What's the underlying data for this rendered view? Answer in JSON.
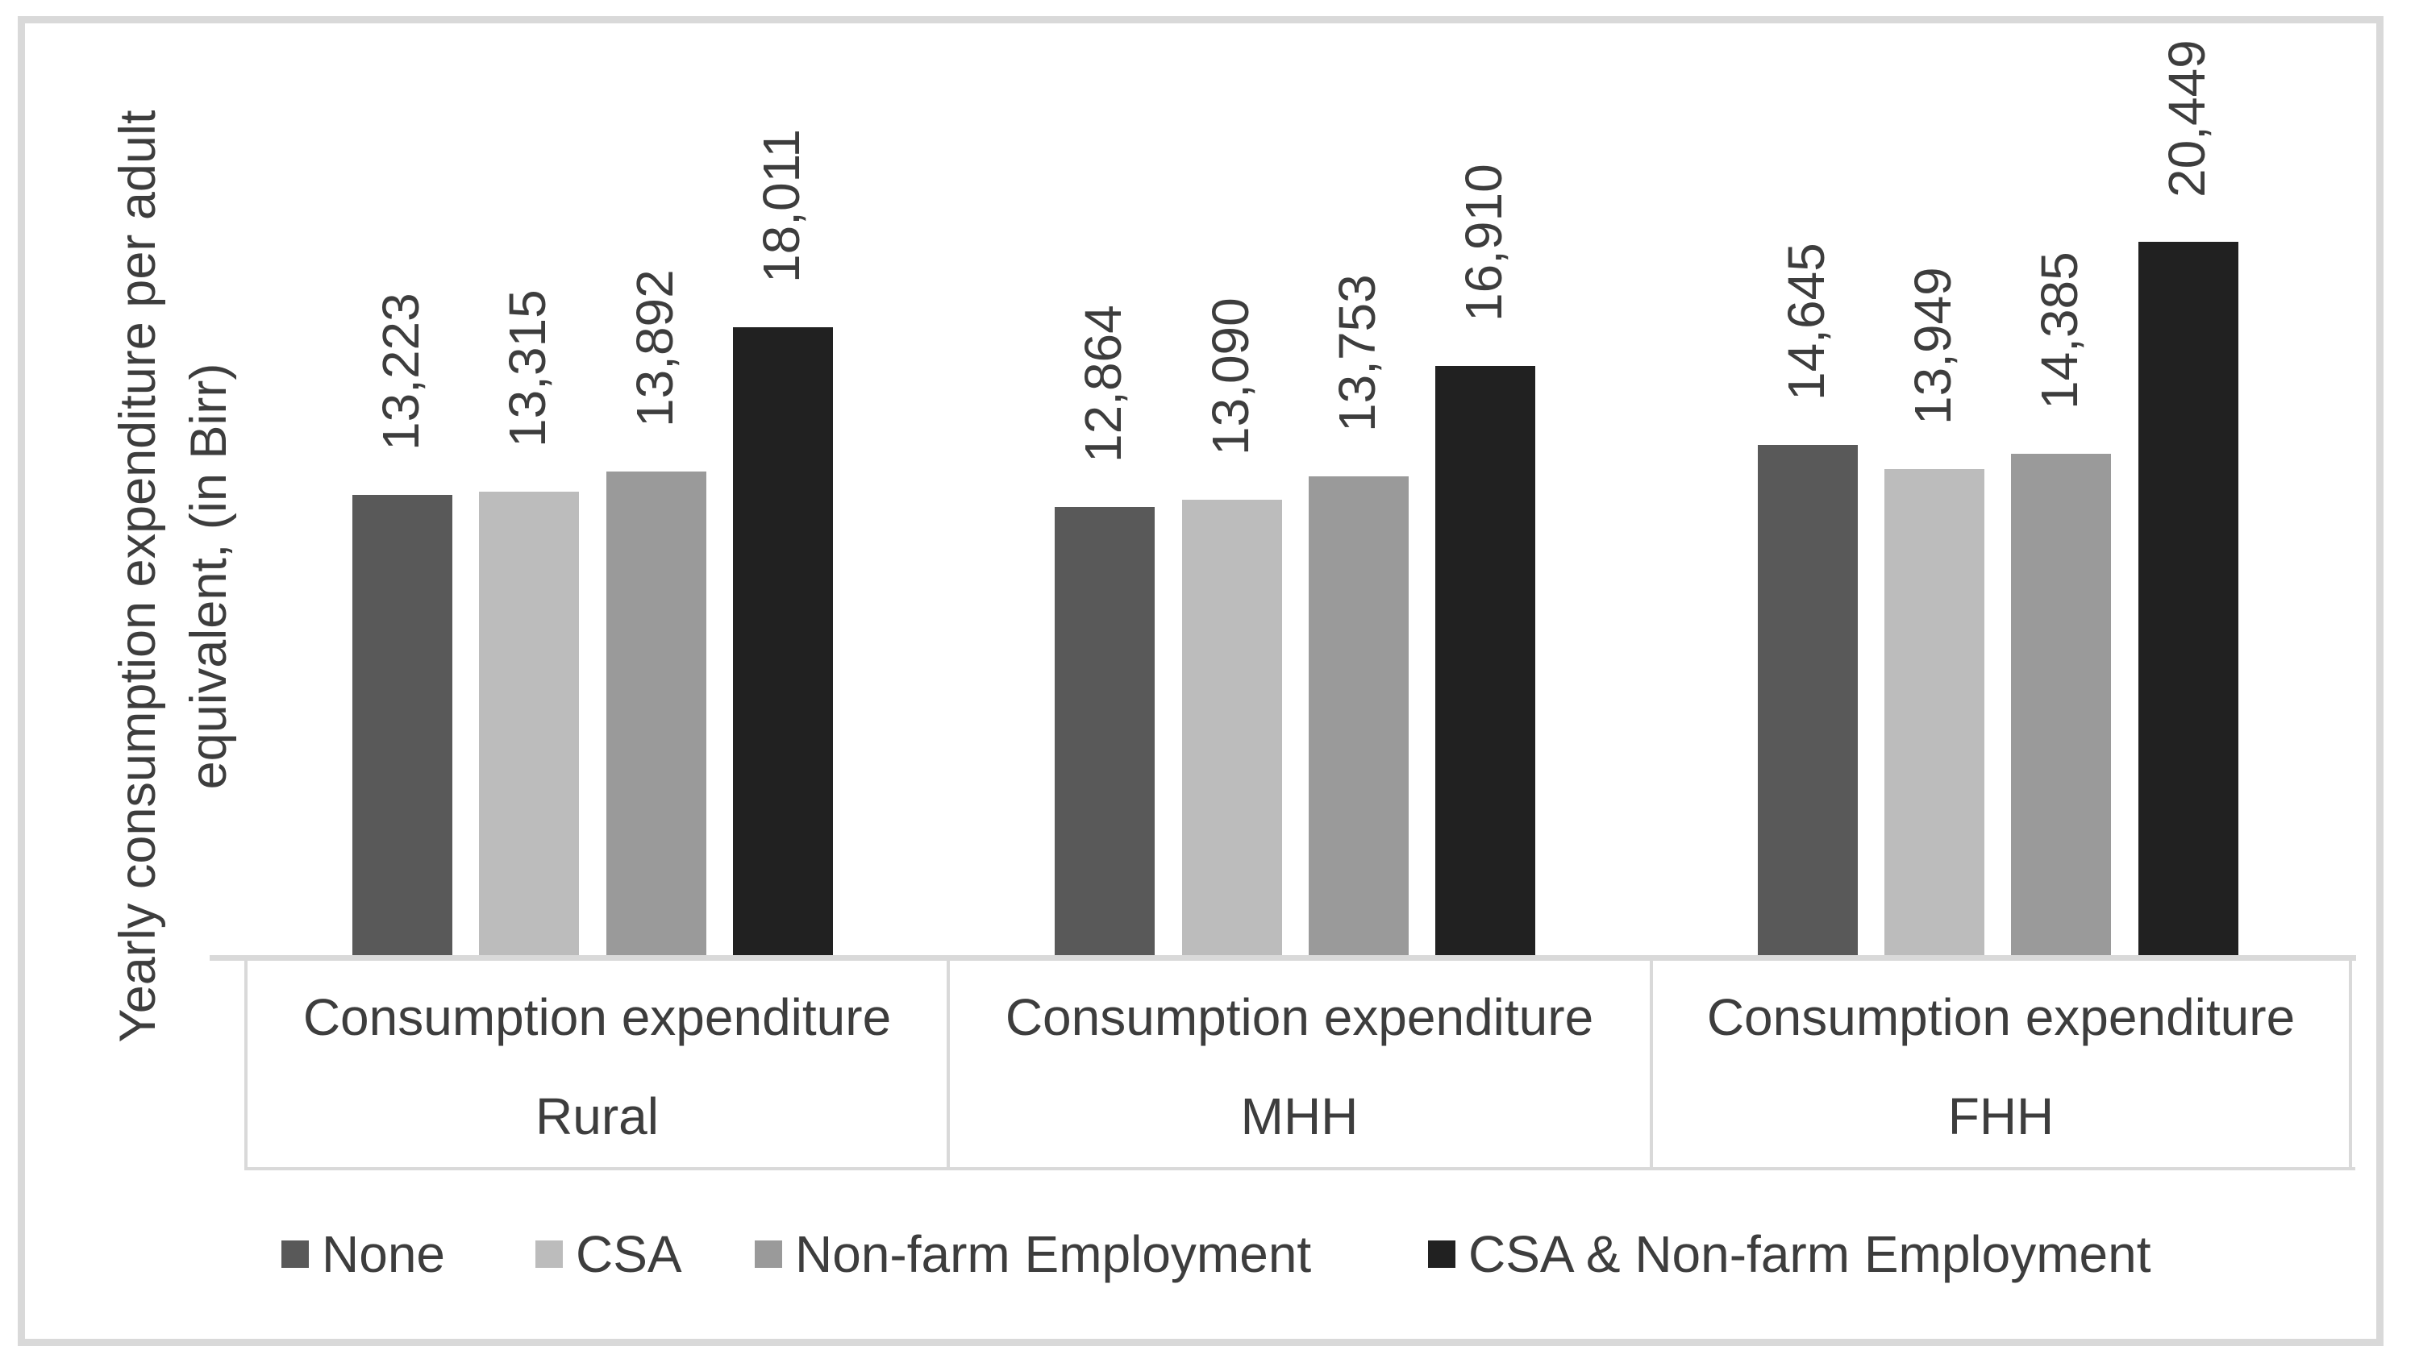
{
  "chart_data": {
    "type": "bar",
    "title": "",
    "ylabel": "Yearly consumption expenditure per adult equivalent, (in Birr)",
    "ylabel_lines": [
      "Yearly consumption expenditure per adult",
      "equivalent, (in Birr)"
    ],
    "xlabel": "",
    "axis": {
      "y_ticks_visible": false,
      "gridlines": false,
      "ylim": [
        0,
        21000
      ],
      "baseline_color": "#d9d9d9"
    },
    "categories": [
      {
        "measure": "Consumption expenditure",
        "group": "Rural"
      },
      {
        "measure": "Consumption expenditure",
        "group": "MHH"
      },
      {
        "measure": "Consumption expenditure",
        "group": "FHH"
      }
    ],
    "series": [
      {
        "name": "None",
        "color": "#595959",
        "values": [
          13223,
          12864,
          14645
        ],
        "value_labels": [
          "13,223",
          "12,864",
          "14,645"
        ]
      },
      {
        "name": "CSA",
        "color": "#bcbcbc",
        "values": [
          13315,
          13090,
          13949
        ],
        "value_labels": [
          "13,315",
          "13,090",
          "13,949"
        ]
      },
      {
        "name": "Non-farm Employment",
        "color": "#9a9a9a",
        "values": [
          13892,
          13753,
          14385
        ],
        "value_labels": [
          "13,892",
          "13,753",
          "14,385"
        ]
      },
      {
        "name": "CSA & Non-farm Employment",
        "color": "#212121",
        "values": [
          18011,
          16910,
          20449
        ],
        "value_labels": [
          "18,011",
          "16,910",
          "20,449"
        ]
      }
    ],
    "data_labels": {
      "position": "outside-end",
      "rotation": -90,
      "format": "#,##0"
    },
    "legend_position": "bottom",
    "frame_color": "#d9d9d9",
    "text_color": "#3d3d3d"
  }
}
